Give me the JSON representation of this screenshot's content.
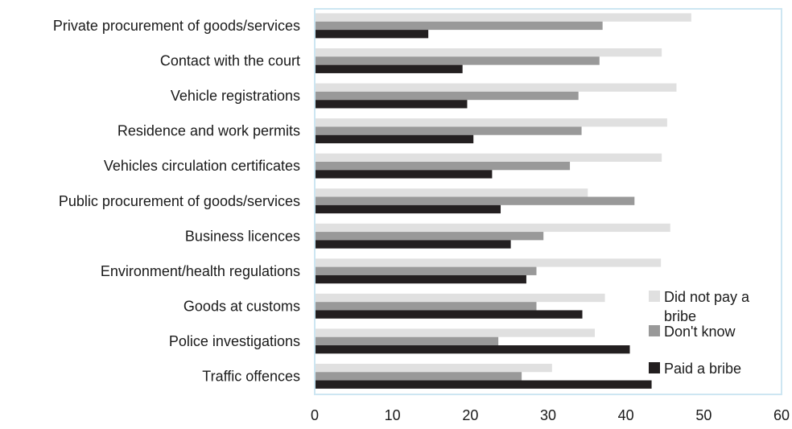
{
  "chart_data": {
    "type": "bar",
    "orientation": "horizontal",
    "categories": [
      "Private procurement of goods/services",
      "Contact with the court",
      "Vehicle registrations",
      "Residence and work permits",
      "Vehicles circulation certificates",
      "Public procurement of goods/services",
      "Business licences",
      "Environment/health regulations",
      "Goods at customs",
      "Police investigations",
      "Traffic offences"
    ],
    "series": [
      {
        "name": "Did not pay a bribe",
        "color": "#e0e0e0",
        "values": [
          48.4,
          44.6,
          46.5,
          45.3,
          44.6,
          35.1,
          45.7,
          44.5,
          37.3,
          36.0,
          30.5
        ]
      },
      {
        "name": "Don't know",
        "color": "#999999",
        "values": [
          37.0,
          36.6,
          33.9,
          34.3,
          32.8,
          41.1,
          29.4,
          28.5,
          28.5,
          23.6,
          26.6
        ]
      },
      {
        "name": "Paid a bribe",
        "color": "#231f20",
        "values": [
          14.6,
          19.0,
          19.6,
          20.4,
          22.8,
          23.9,
          25.2,
          27.2,
          34.4,
          40.5,
          43.3
        ]
      }
    ],
    "xlim": [
      0,
      60
    ],
    "xticks": [
      "0",
      "10",
      "20",
      "30",
      "40",
      "50",
      "60"
    ],
    "grid": false,
    "legend_position": "right"
  },
  "legend": {
    "items": [
      {
        "line1": "Did not pay a",
        "line2": "bribe",
        "color": "#e0e0e0"
      },
      {
        "line1": "Don't know",
        "line2": "",
        "color": "#999999"
      },
      {
        "line1": "Paid a bribe",
        "line2": "",
        "color": "#231f20"
      }
    ]
  },
  "colors": {
    "frame": "#cde6f2"
  }
}
